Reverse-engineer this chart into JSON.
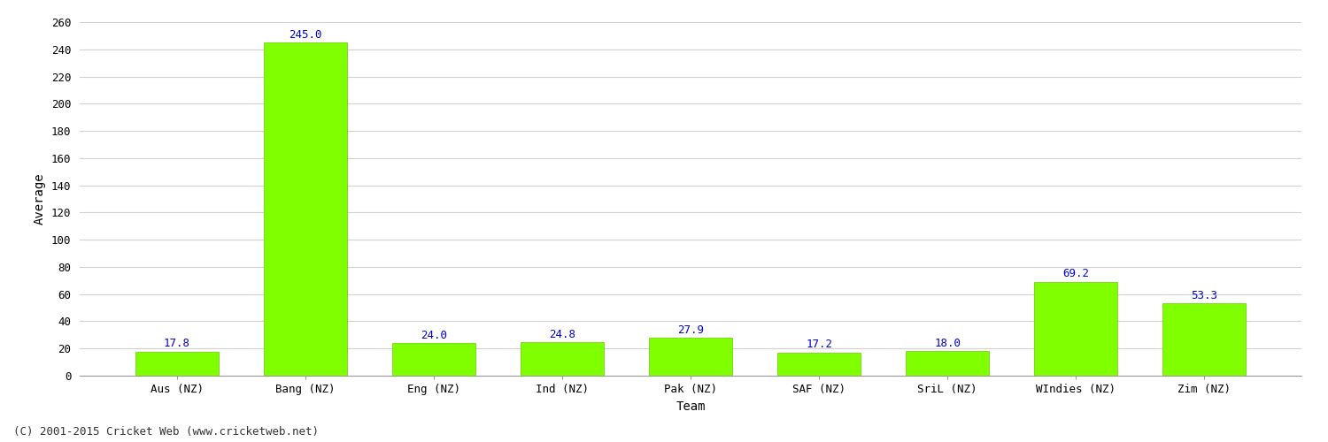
{
  "categories": [
    "Aus (NZ)",
    "Bang (NZ)",
    "Eng (NZ)",
    "Ind (NZ)",
    "Pak (NZ)",
    "SAF (NZ)",
    "SriL (NZ)",
    "WIndies (NZ)",
    "Zim (NZ)"
  ],
  "values": [
    17.8,
    245.0,
    24.0,
    24.8,
    27.9,
    17.2,
    18.0,
    69.2,
    53.3
  ],
  "bar_color": "#7FFF00",
  "bar_edge_color": "#66CC00",
  "label_color": "#0000CC",
  "xlabel": "Team",
  "ylabel": "Average",
  "ylim": [
    0,
    260
  ],
  "yticks": [
    0,
    20,
    40,
    60,
    80,
    100,
    120,
    140,
    160,
    180,
    200,
    220,
    240,
    260
  ],
  "background_color": "#FFFFFF",
  "grid_color": "#D0D0D0",
  "footnote": "(C) 2001-2015 Cricket Web (www.cricketweb.net)",
  "axis_label_fontsize": 10,
  "tick_fontsize": 9,
  "value_label_fontsize": 9,
  "footnote_fontsize": 9,
  "bar_width": 0.65
}
